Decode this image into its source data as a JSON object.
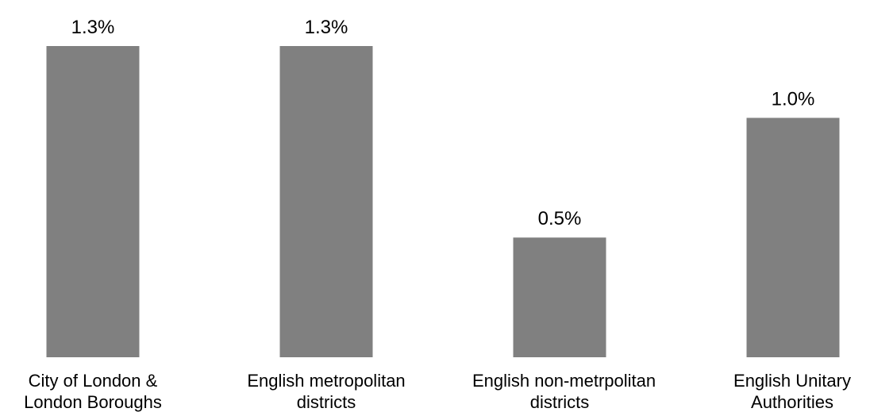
{
  "chart_data": {
    "type": "bar",
    "title": "",
    "xlabel": "",
    "ylabel": "",
    "categories": [
      [
        "City of London &",
        "London Boroughs"
      ],
      [
        "English metropolitan",
        "districts"
      ],
      [
        "English non-metrpolitan",
        "districts"
      ],
      [
        "English Unitary",
        "Authorities"
      ]
    ],
    "values": [
      1.3,
      1.3,
      0.5,
      1.0
    ],
    "value_labels": [
      "1.3%",
      "1.3%",
      "0.5%",
      "1.0%"
    ],
    "ylim": [
      0,
      1.3
    ],
    "grid": false,
    "legend": "none",
    "bar_color": "#808080"
  }
}
